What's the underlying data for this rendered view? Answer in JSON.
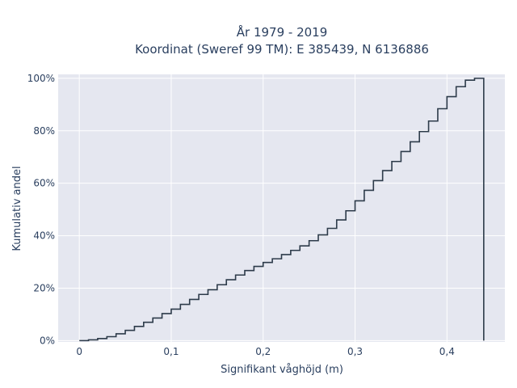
{
  "chart_data": {
    "type": "line",
    "line_shape": "step",
    "title_lines": [
      "År 1979 - 2019",
      "Koordinat (Sweref 99 TM): E 385439, N 6136886"
    ],
    "xlabel": "Signifikant våghöjd (m)",
    "ylabel": "Kumulativ andel",
    "x_ticks": [
      {
        "value": 0,
        "label": "0"
      },
      {
        "value": 0.1,
        "label": "0,1"
      },
      {
        "value": 0.2,
        "label": "0,2"
      },
      {
        "value": 0.3,
        "label": "0,3"
      },
      {
        "value": 0.4,
        "label": "0,4"
      }
    ],
    "y_ticks": [
      {
        "value": 0,
        "label": "0%"
      },
      {
        "value": 20,
        "label": "20%"
      },
      {
        "value": 40,
        "label": "40%"
      },
      {
        "value": 60,
        "label": "60%"
      },
      {
        "value": 80,
        "label": "80%"
      },
      {
        "value": 100,
        "label": "100%"
      }
    ],
    "xlim": [
      -0.023,
      0.463
    ],
    "ylim": [
      -0.5,
      101.5
    ],
    "grid": true,
    "line_color": "#2d3b4a",
    "plot_bg_color": "#e5e7f0",
    "grid_color": "#ffffff",
    "x": [
      0,
      0.01,
      0.02,
      0.03,
      0.04,
      0.05,
      0.06,
      0.07,
      0.08,
      0.09,
      0.1,
      0.11,
      0.12,
      0.13,
      0.14,
      0.15,
      0.16,
      0.17,
      0.18,
      0.19,
      0.2,
      0.21,
      0.22,
      0.23,
      0.24,
      0.25,
      0.26,
      0.27,
      0.28,
      0.29,
      0.3,
      0.31,
      0.32,
      0.33,
      0.34,
      0.35,
      0.36,
      0.37,
      0.38,
      0.39,
      0.4,
      0.41,
      0.42,
      0.43,
      0.44
    ],
    "values": [
      0,
      0.3,
      0.8,
      1.5,
      2.6,
      3.9,
      5.4,
      7.0,
      8.6,
      10.3,
      12.0,
      13.8,
      15.7,
      17.6,
      19.4,
      21.3,
      23.2,
      25.0,
      26.7,
      28.3,
      29.8,
      31.2,
      32.8,
      34.4,
      36.1,
      38.1,
      40.3,
      42.8,
      46.0,
      49.5,
      53.3,
      57.3,
      61.0,
      64.8,
      68.3,
      72.1,
      75.8,
      79.7,
      83.7,
      88.4,
      93.0,
      96.8,
      99.3,
      100,
      0
    ]
  }
}
